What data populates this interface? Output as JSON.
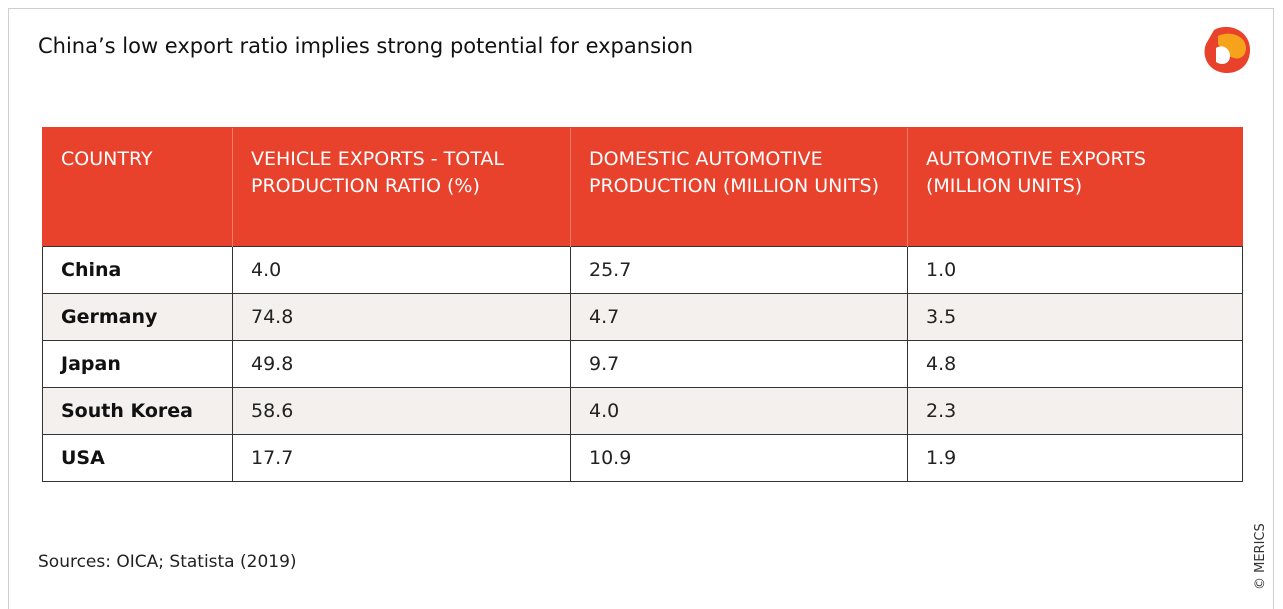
{
  "title": "China’s low export ratio implies strong potential for expansion",
  "table": {
    "header": [
      "COUNTRY",
      "VEHICLE EXPORTS - TOTAL PRODUCTION RATIO (%)",
      "DOMESTIC AUTOMOTIVE PRODUCTION (MILLION UNITS)",
      "AUTOMOTIVE EXPORTS (MILLION UNITS)"
    ],
    "rows": [
      [
        "China",
        "4.0",
        "25.7",
        "1.0"
      ],
      [
        "Germany",
        "74.8",
        "4.7",
        "3.5"
      ],
      [
        "Japan",
        "49.8",
        "9.7",
        "4.8"
      ],
      [
        "South Korea",
        "58.6",
        "4.0",
        "2.3"
      ],
      [
        "USA",
        "17.7",
        "10.9",
        "1.9"
      ]
    ]
  },
  "source": "Sources: OICA; Statista (2019)",
  "credit": "© MERICS"
}
